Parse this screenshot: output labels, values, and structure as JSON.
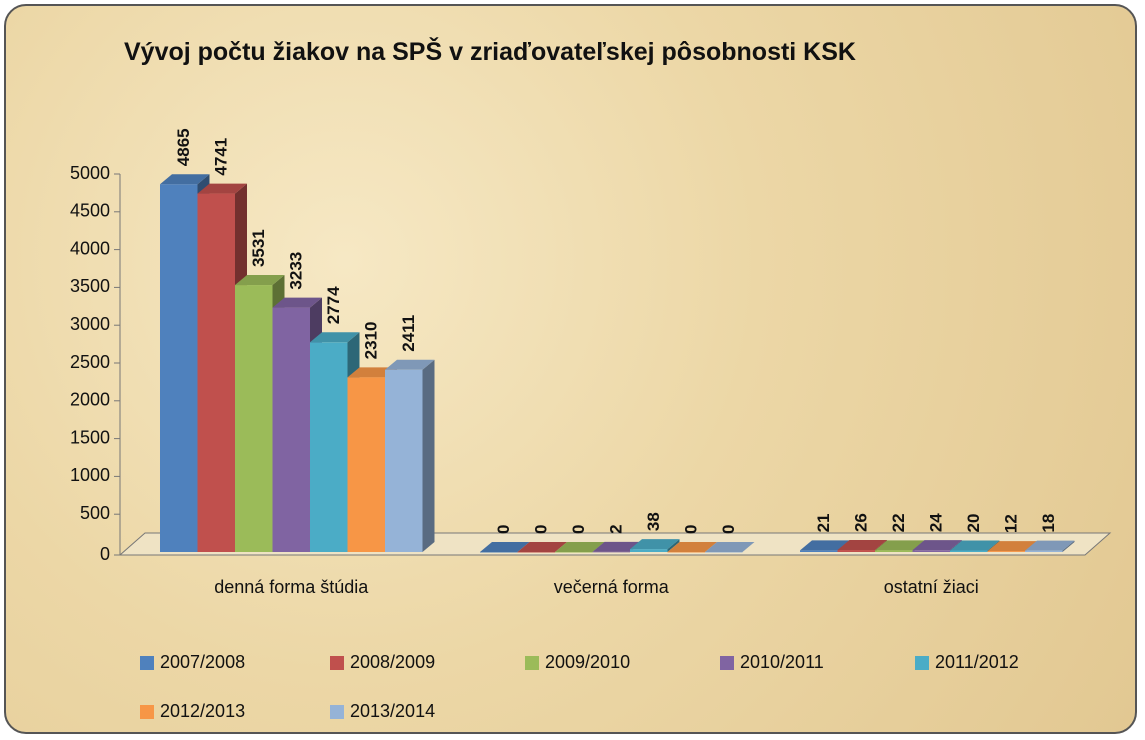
{
  "chart_data": {
    "type": "bar3d",
    "title": "Vývoj počtu žiakov na SPŠ v zriaďovateľskej pôsobnosti KSK",
    "categories": [
      "denná forma štúdia",
      "večerná forma",
      "ostatní žiaci"
    ],
    "series": [
      {
        "name": "2007/2008",
        "color": "#4f81bd",
        "values": [
          4865,
          0,
          21
        ]
      },
      {
        "name": "2008/2009",
        "color": "#c0504d",
        "values": [
          4741,
          0,
          26
        ]
      },
      {
        "name": "2009/2010",
        "color": "#9bbb59",
        "values": [
          3531,
          0,
          22
        ]
      },
      {
        "name": "2010/2011",
        "color": "#8064a2",
        "values": [
          3233,
          2,
          24
        ]
      },
      {
        "name": "2011/2012",
        "color": "#4bacc6",
        "values": [
          2774,
          38,
          20
        ]
      },
      {
        "name": "2012/2013",
        "color": "#f79646",
        "values": [
          2310,
          0,
          12
        ]
      },
      {
        "name": "2013/2014",
        "color": "#95b3d7",
        "values": [
          2411,
          0,
          18
        ]
      }
    ],
    "ylim": [
      0,
      5000
    ],
    "yticks": [
      0,
      500,
      1000,
      1500,
      2000,
      2500,
      3000,
      3500,
      4000,
      4500,
      5000
    ],
    "legend": "bottom"
  }
}
